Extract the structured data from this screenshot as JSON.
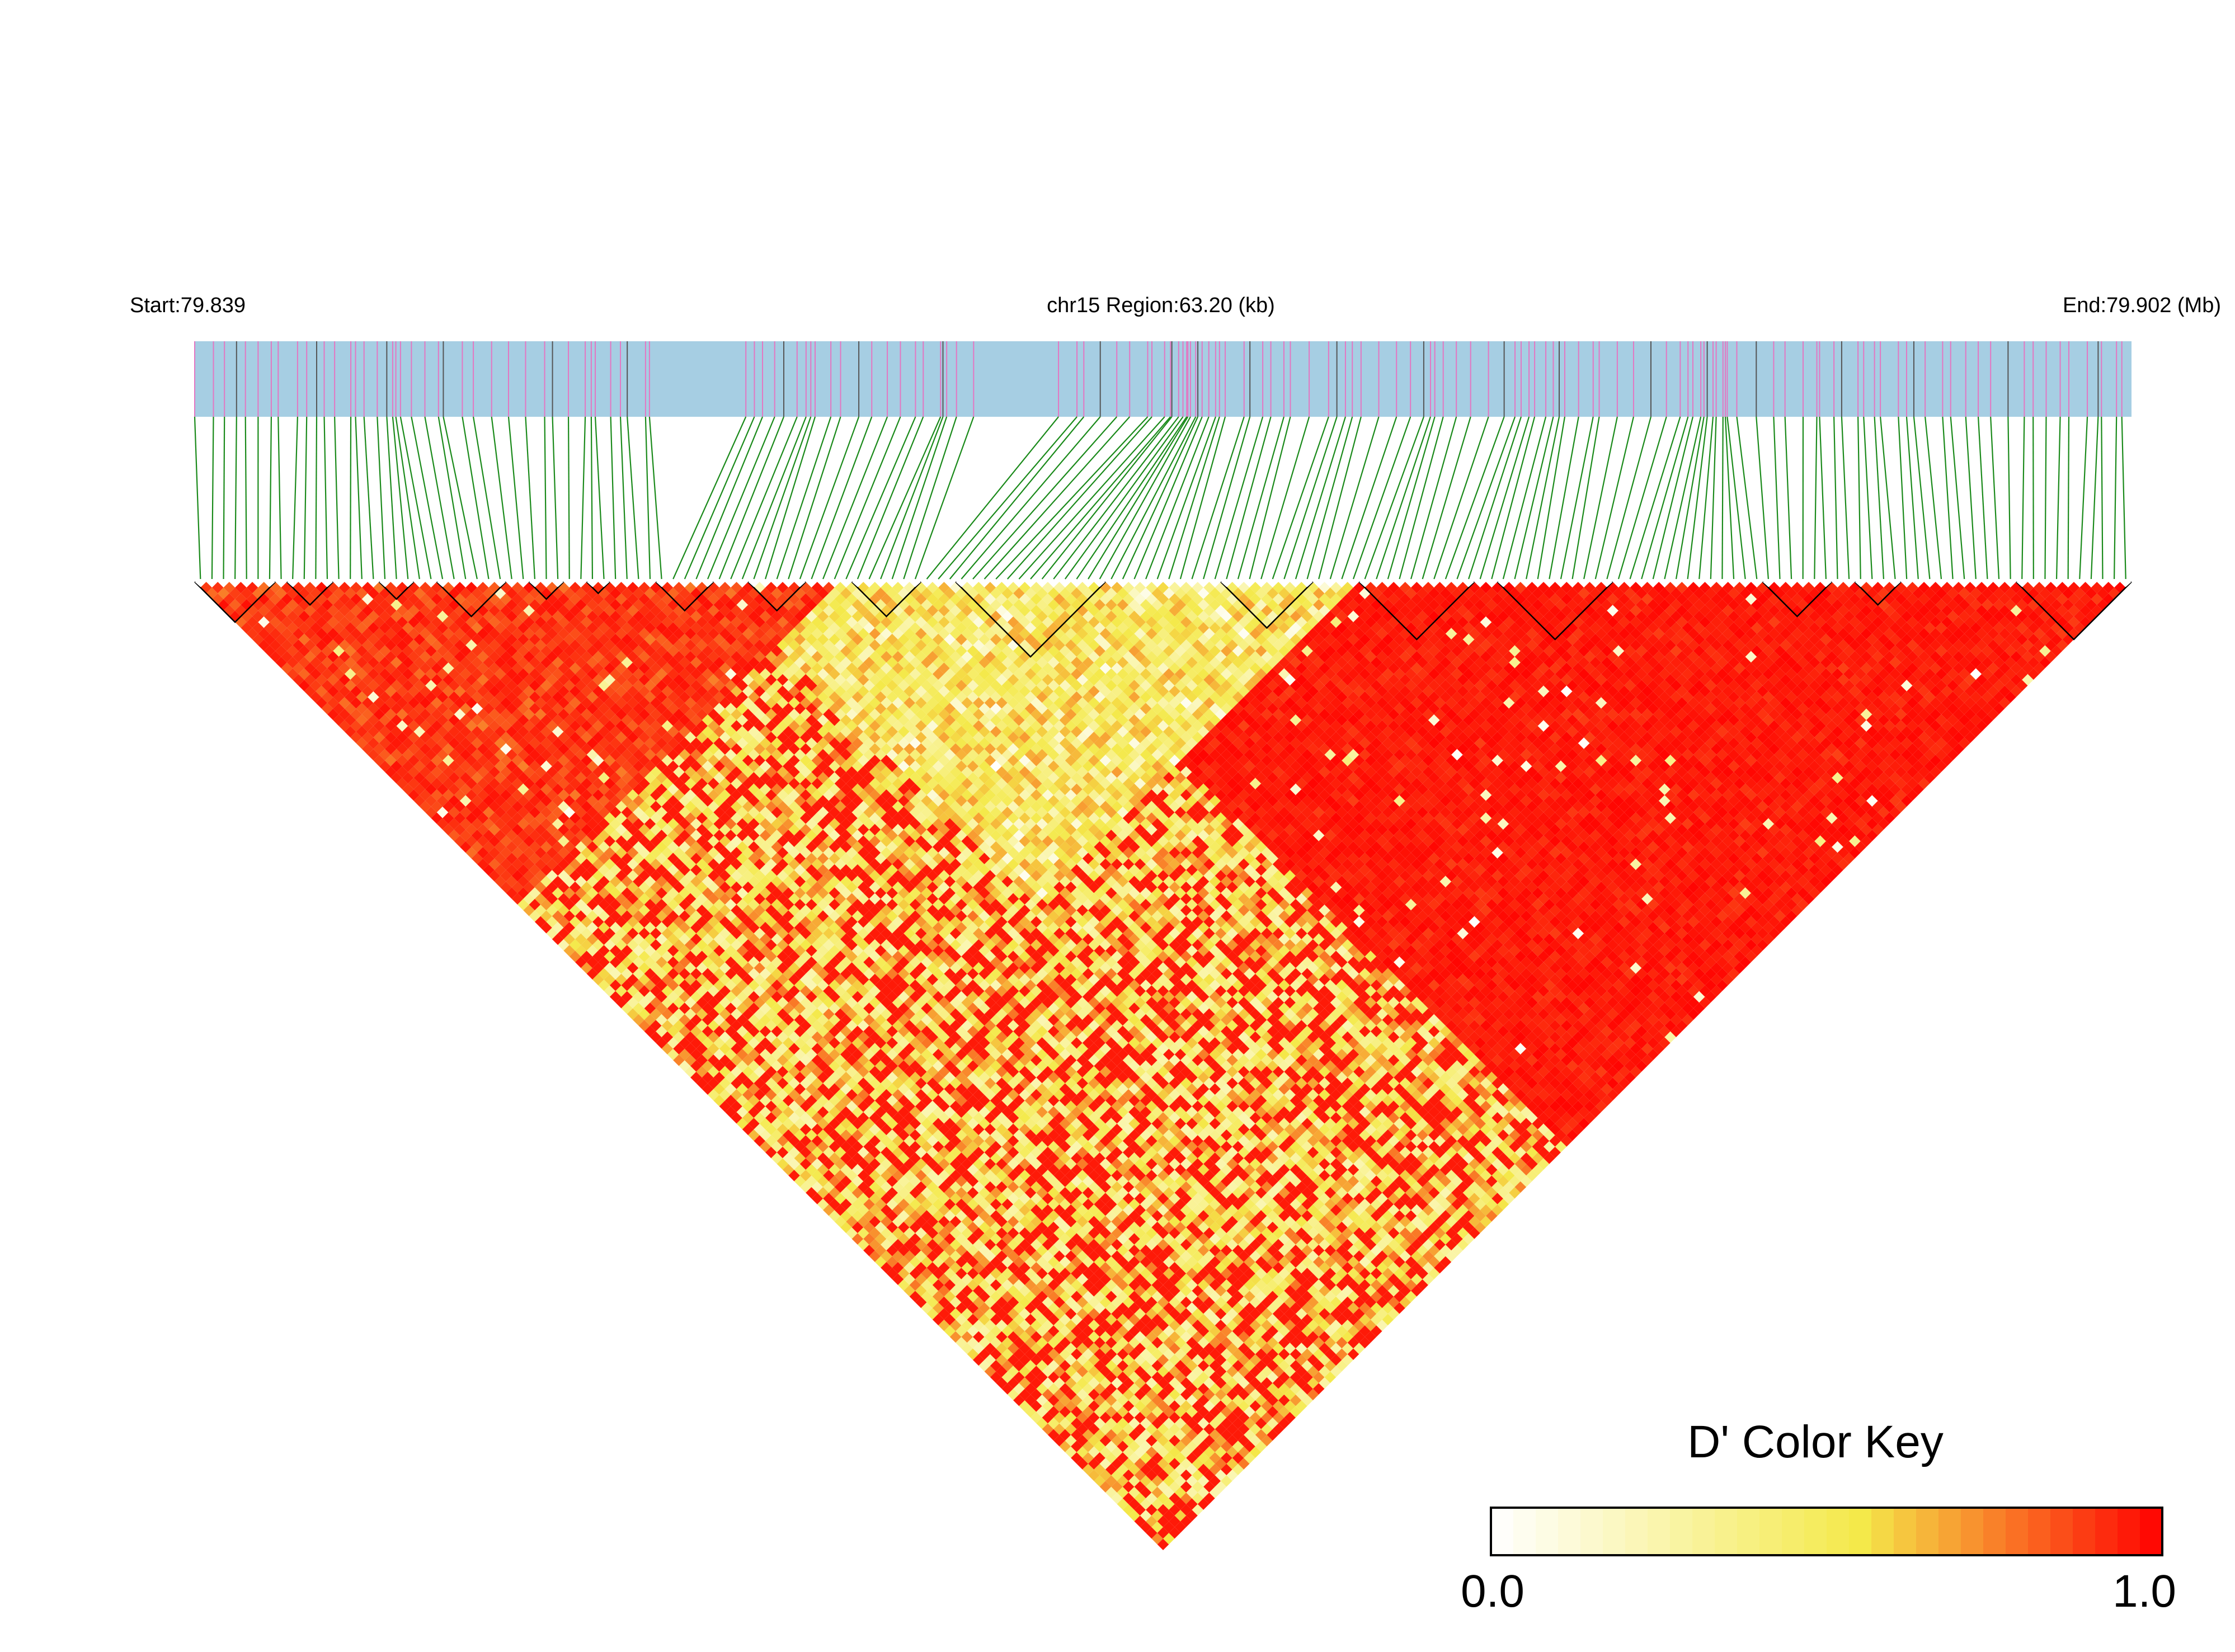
{
  "header": {
    "start_label": "Start:79.839",
    "region_label": "chr15 Region:63.20 (kb)",
    "end_label": "End:79.902 (Mb)"
  },
  "colors": {
    "track_background": "#a6cee3",
    "snp_tick": "#e377c2",
    "snp_tick_dark": "#555555",
    "connector": "#1a8a1a",
    "block_outline": "#000000",
    "ld_high": "#ff0000",
    "ld_mid": "#f4e94a",
    "ld_low": "#ffffff"
  },
  "chart_data": {
    "type": "heatmap",
    "title": "",
    "chromosome": "chr15",
    "region_start_mb": 79.839,
    "region_end_mb": 79.902,
    "region_length_kb": 63.2,
    "n_snps": 168,
    "measure": "D'",
    "haplotype_blocks": [
      [
        0,
        7
      ],
      [
        8,
        12
      ],
      [
        16,
        19
      ],
      [
        21,
        27
      ],
      [
        29,
        32
      ],
      [
        34,
        36
      ],
      [
        40,
        45
      ],
      [
        48,
        53
      ],
      [
        57,
        63
      ],
      [
        66,
        79
      ],
      [
        89,
        97
      ],
      [
        101,
        111
      ],
      [
        113,
        123
      ],
      [
        136,
        142
      ],
      [
        144,
        148
      ],
      [
        158,
        168
      ]
    ],
    "regions": [
      {
        "start": 0,
        "end": 55,
        "level": 0.97,
        "noise": 0.15
      },
      {
        "start": 45,
        "end": 100,
        "level": 0.7,
        "noise": 0.45
      },
      {
        "start": 70,
        "end": 168,
        "level": 0.99,
        "noise": 0.08
      }
    ],
    "legend": {
      "title": "D' Color Key",
      "min_label": "0.0",
      "max_label": "1.0",
      "range": [
        0.0,
        1.0
      ],
      "steps": 30,
      "placement": "bottom-right"
    }
  }
}
